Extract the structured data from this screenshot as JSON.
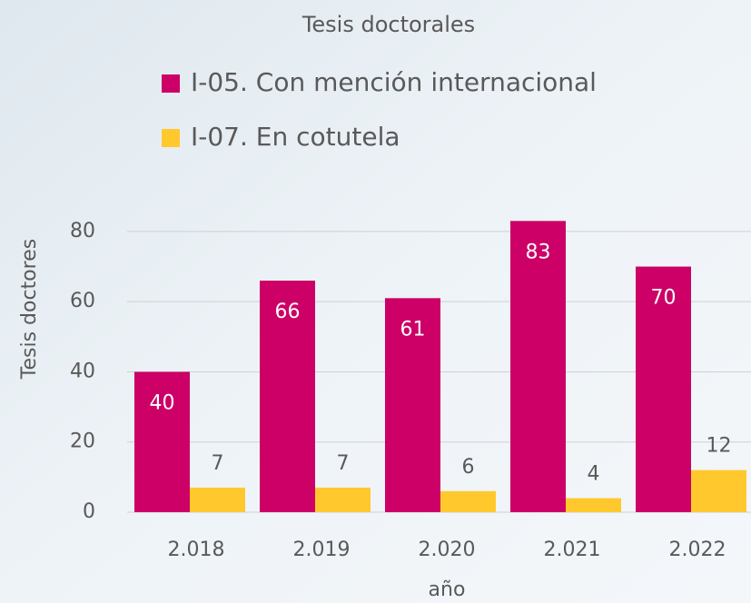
{
  "chart_data": {
    "type": "bar",
    "title": "Tesis doctorales",
    "x_label": "año",
    "y_label": "Tesis doctores",
    "categories": [
      "2.018",
      "2.019",
      "2.020",
      "2.021",
      "2.022"
    ],
    "series": [
      {
        "name": "I-05. Con mención internacional",
        "color": "#cc0066",
        "values": [
          40,
          66,
          61,
          83,
          70
        ]
      },
      {
        "name": "I-07. En cotutela",
        "color": "#ffc92e",
        "values": [
          7,
          7,
          6,
          4,
          12
        ]
      }
    ],
    "ylim": [
      0,
      88
    ],
    "yticks": [
      0,
      20,
      40,
      60,
      80
    ],
    "grid": true,
    "legend": "top"
  }
}
